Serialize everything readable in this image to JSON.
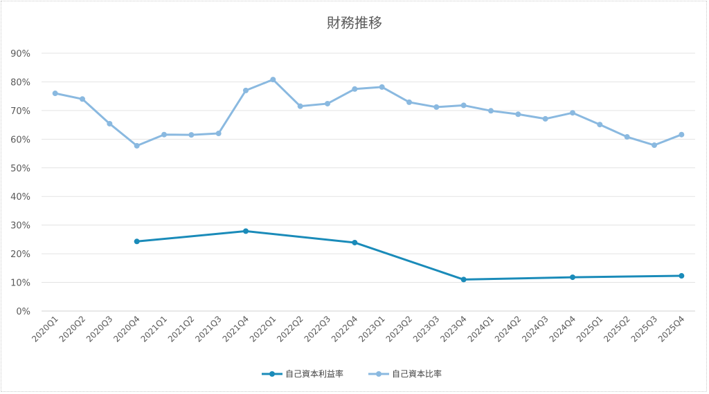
{
  "chart_data": {
    "type": "line",
    "title": "財務推移",
    "xlabel": "",
    "ylabel": "",
    "ylim": [
      0,
      90
    ],
    "yticks": [
      "0%",
      "10%",
      "20%",
      "30%",
      "40%",
      "50%",
      "60%",
      "70%",
      "80%",
      "90%"
    ],
    "grid": true,
    "legend": "bottom",
    "categories": [
      "2020Q1",
      "2020Q2",
      "2020Q3",
      "2020Q4",
      "2021Q1",
      "2021Q2",
      "2021Q3",
      "2021Q4",
      "2022Q1",
      "2022Q2",
      "2022Q3",
      "2022Q4",
      "2023Q1",
      "2023Q2",
      "2023Q3",
      "2023Q4",
      "2024Q1",
      "2024Q2",
      "2024Q3",
      "2024Q4",
      "2025Q1",
      "2025Q2",
      "2025Q3",
      "2025Q4"
    ],
    "series": [
      {
        "name": "自己資本利益率",
        "color": "#1a8bb9",
        "values": [
          null,
          null,
          null,
          24.3,
          null,
          null,
          null,
          27.9,
          null,
          null,
          null,
          23.9,
          null,
          null,
          null,
          11.0,
          null,
          null,
          null,
          11.8,
          null,
          null,
          null,
          12.3
        ]
      },
      {
        "name": "自己資本比率",
        "color": "#8ab9e0",
        "values": [
          76.0,
          74.0,
          65.4,
          57.7,
          61.6,
          61.5,
          62.0,
          77.0,
          80.8,
          71.5,
          72.4,
          77.5,
          78.2,
          72.9,
          71.2,
          71.8,
          69.9,
          68.7,
          67.1,
          69.2,
          65.1,
          60.8,
          57.9,
          61.6
        ]
      }
    ]
  }
}
